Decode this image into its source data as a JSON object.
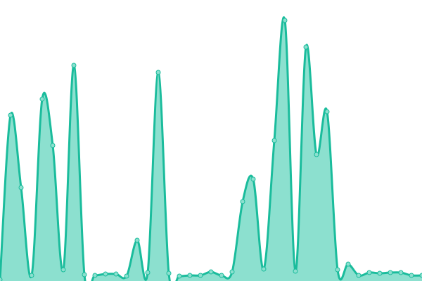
{
  "chart_data": {
    "type": "area",
    "title": "",
    "xlabel": "",
    "ylabel": "",
    "x": [
      0,
      1,
      2,
      3,
      4,
      5,
      6,
      7,
      8,
      9,
      10,
      11,
      12,
      13,
      14,
      15,
      16,
      17,
      18,
      19,
      20,
      21,
      22,
      23,
      24,
      25,
      26,
      27,
      28,
      29,
      30,
      31,
      32,
      33,
      34,
      35,
      36,
      37,
      38,
      39,
      40
    ],
    "values": [
      2,
      236,
      133,
      8,
      259,
      193,
      16,
      307,
      9,
      8,
      10,
      10,
      7,
      58,
      12,
      297,
      11,
      7,
      8,
      8,
      13,
      8,
      13,
      113,
      145,
      17,
      200,
      371,
      14,
      333,
      180,
      241,
      16,
      24,
      8,
      12,
      11,
      12,
      12,
      8,
      8
    ],
    "ylim": [
      0,
      400
    ],
    "grid": false,
    "axes_visible": false,
    "colors": {
      "line": "#1abc9c",
      "fill": "#8ce0cf",
      "point_fill": "#8ce0cf",
      "point_stroke": "#1abc9c"
    }
  }
}
